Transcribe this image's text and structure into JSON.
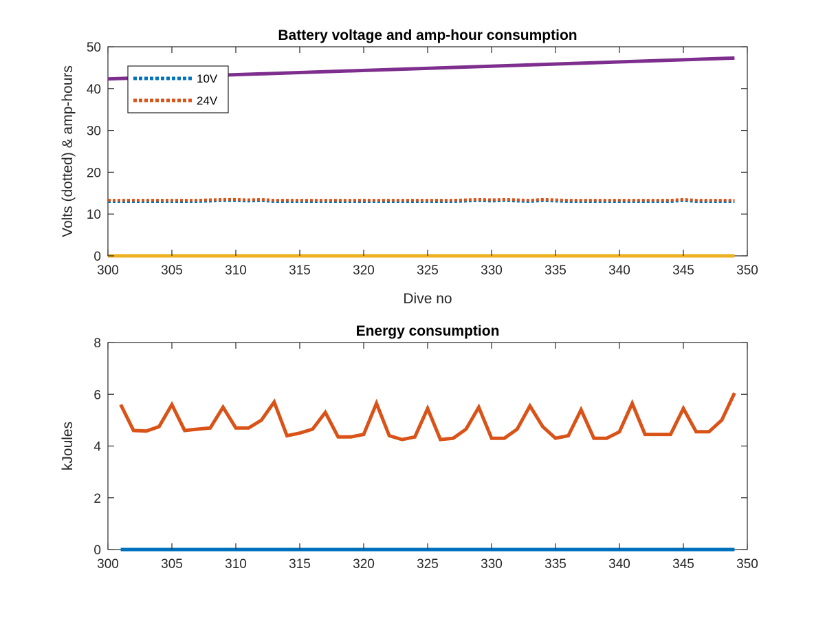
{
  "chart_data": [
    {
      "type": "line",
      "title": "Battery voltage and amp-hour consumption",
      "xlabel": "Dive no",
      "ylabel": "Volts (dotted) & amp-hours",
      "xlim": [
        300,
        350
      ],
      "ylim": [
        0,
        50
      ],
      "xticks": [
        300,
        305,
        310,
        315,
        320,
        325,
        330,
        335,
        340,
        345,
        350
      ],
      "yticks": [
        0,
        10,
        20,
        30,
        40,
        50
      ],
      "grid": false,
      "legend": "top-left",
      "series": [
        {
          "name": "10V",
          "style": "dotted",
          "color": "#0072BD",
          "x": [
            300,
            301,
            302,
            303,
            304,
            305,
            306,
            307,
            308,
            309,
            310,
            311,
            312,
            313,
            314,
            315,
            316,
            317,
            318,
            319,
            320,
            321,
            322,
            323,
            324,
            325,
            326,
            327,
            328,
            329,
            330,
            331,
            332,
            333,
            334,
            335,
            336,
            337,
            338,
            339,
            340,
            341,
            342,
            343,
            344,
            345,
            346,
            347,
            348,
            349
          ],
          "values": [
            13.0,
            13.0,
            13.0,
            13.0,
            13.0,
            13.0,
            13.0,
            13.0,
            13.1,
            13.2,
            13.2,
            13.1,
            13.2,
            13.0,
            13.0,
            13.0,
            13.0,
            13.0,
            13.0,
            13.0,
            13.0,
            13.0,
            13.0,
            13.0,
            13.0,
            13.0,
            13.0,
            13.0,
            13.1,
            13.2,
            13.1,
            13.2,
            13.1,
            13.0,
            13.2,
            13.1,
            13.0,
            13.0,
            13.0,
            13.0,
            13.0,
            13.0,
            13.0,
            13.0,
            13.0,
            13.2,
            13.0,
            13.0,
            13.0,
            13.0
          ]
        },
        {
          "name": "24V",
          "style": "dotted",
          "color": "#D95319",
          "x": [
            300,
            301,
            302,
            303,
            304,
            305,
            306,
            307,
            308,
            309,
            310,
            311,
            312,
            313,
            314,
            315,
            316,
            317,
            318,
            319,
            320,
            321,
            322,
            323,
            324,
            325,
            326,
            327,
            328,
            329,
            330,
            331,
            332,
            333,
            334,
            335,
            336,
            337,
            338,
            339,
            340,
            341,
            342,
            343,
            344,
            345,
            346,
            347,
            348,
            349
          ],
          "values": [
            13.3,
            13.3,
            13.3,
            13.3,
            13.3,
            13.3,
            13.3,
            13.3,
            13.4,
            13.5,
            13.5,
            13.4,
            13.5,
            13.3,
            13.3,
            13.3,
            13.3,
            13.3,
            13.3,
            13.3,
            13.3,
            13.3,
            13.3,
            13.3,
            13.3,
            13.3,
            13.3,
            13.3,
            13.4,
            13.5,
            13.4,
            13.5,
            13.4,
            13.3,
            13.5,
            13.4,
            13.3,
            13.3,
            13.3,
            13.3,
            13.3,
            13.3,
            13.3,
            13.3,
            13.3,
            13.5,
            13.3,
            13.3,
            13.3,
            13.3
          ]
        },
        {
          "name": "",
          "style": "solid",
          "color": "#7E2F8E",
          "x": [
            300,
            349
          ],
          "values": [
            42.3,
            47.3
          ]
        },
        {
          "name": "",
          "style": "solid",
          "color": "#EDB120",
          "x": [
            300,
            349
          ],
          "values": [
            0,
            0
          ]
        }
      ]
    },
    {
      "type": "line",
      "title": "Energy consumption",
      "xlabel": "",
      "ylabel": "kJoules",
      "xlim": [
        300,
        350
      ],
      "ylim": [
        0,
        8
      ],
      "xticks": [
        300,
        305,
        310,
        315,
        320,
        325,
        330,
        335,
        340,
        345,
        350
      ],
      "yticks": [
        0,
        2,
        4,
        6,
        8
      ],
      "grid": false,
      "series": [
        {
          "name": "",
          "style": "solid",
          "color": "#D95319",
          "x": [
            301,
            302,
            303,
            304,
            305,
            306,
            307,
            308,
            309,
            310,
            311,
            312,
            313,
            314,
            315,
            316,
            317,
            318,
            319,
            320,
            321,
            322,
            323,
            324,
            325,
            326,
            327,
            328,
            329,
            330,
            331,
            332,
            333,
            334,
            335,
            336,
            337,
            338,
            339,
            340,
            341,
            342,
            343,
            344,
            345,
            346,
            347,
            348,
            349
          ],
          "values": [
            5.6,
            4.6,
            4.58,
            4.75,
            5.6,
            4.6,
            4.65,
            4.7,
            5.5,
            4.7,
            4.7,
            5.0,
            5.7,
            4.4,
            4.5,
            4.65,
            5.3,
            4.35,
            4.35,
            4.45,
            5.65,
            4.4,
            4.25,
            4.35,
            5.45,
            4.25,
            4.3,
            4.65,
            5.5,
            4.3,
            4.3,
            4.65,
            5.55,
            4.75,
            4.3,
            4.4,
            5.4,
            4.3,
            4.3,
            4.55,
            5.65,
            4.45,
            4.45,
            4.45,
            5.45,
            4.55,
            4.55,
            5.0,
            6.05
          ]
        },
        {
          "name": "",
          "style": "solid",
          "color": "#0072BD",
          "x": [
            301,
            349
          ],
          "values": [
            0,
            0
          ]
        }
      ]
    }
  ]
}
